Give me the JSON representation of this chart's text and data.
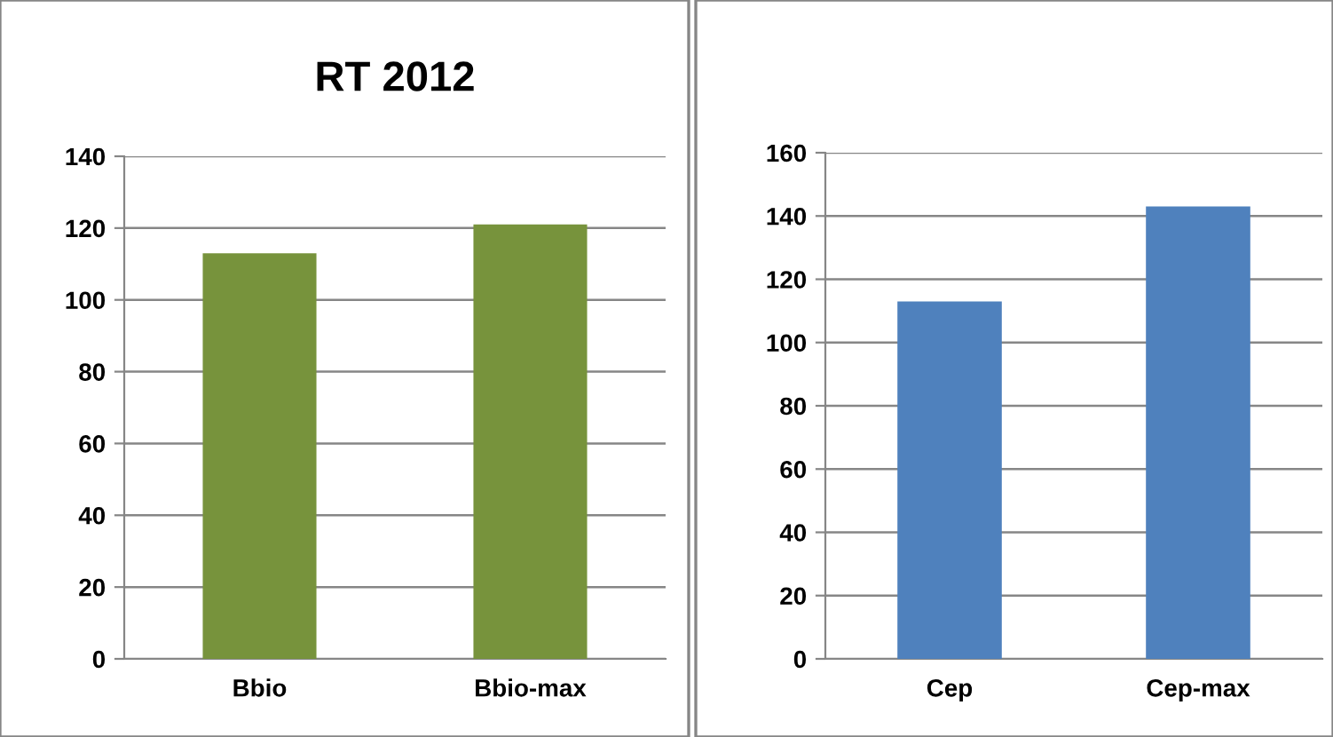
{
  "chart_data": [
    {
      "type": "bar",
      "title": "RT 2012",
      "categories": [
        "Bbio",
        "Bbio-max"
      ],
      "values": [
        113,
        121
      ],
      "color": "#77933c",
      "ylim": [
        0,
        140
      ],
      "yticks": [
        0,
        20,
        40,
        60,
        80,
        100,
        120,
        140
      ],
      "grid": "y"
    },
    {
      "type": "bar",
      "categories": [
        "Cep",
        "Cep-max"
      ],
      "values": [
        113,
        143
      ],
      "color": "#4f81bd",
      "ylim": [
        0,
        160
      ],
      "yticks": [
        0,
        20,
        40,
        60,
        80,
        100,
        120,
        140,
        160
      ],
      "grid": "y"
    }
  ]
}
